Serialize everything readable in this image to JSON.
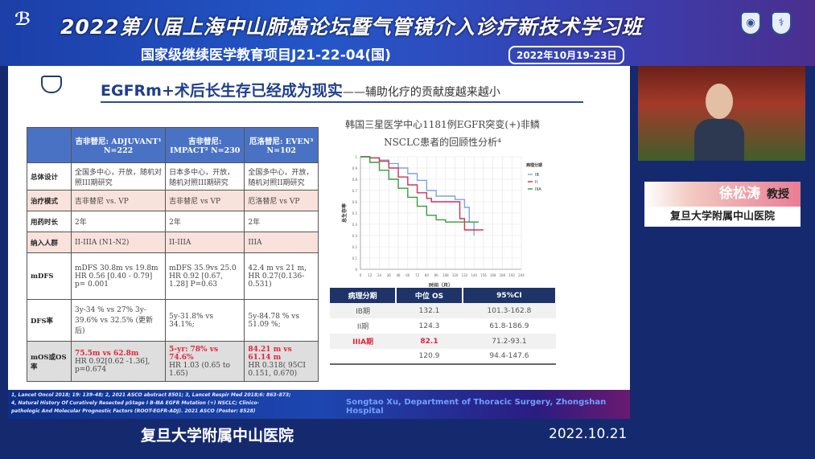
{
  "banner": {
    "title": "2022第八届上海中山肺癌论坛暨气管镜介入诊疗新技术学习班",
    "subtitle": "国家级继续医学教育项目J21-22-04(国)",
    "date": "2022年10月19-23日"
  },
  "slide": {
    "logo_text": "中山医院",
    "title": "EGFRm+术后长生存已经成为现实",
    "title_suffix": "——辅助化疗的贡献度越来越小",
    "table": {
      "headers": [
        "",
        "吉非替尼: ADJUVANT¹ N=222",
        "吉非替尼: IMPACT² N=230",
        "厄洛替尼: EVEN³ N=102"
      ],
      "rows": [
        {
          "label": "总体设计",
          "cells": [
            "全国多中心，开放，随机对照III期研究",
            "日本多中心，开放，随机对照III期研究",
            "全国多中心，开放，随机对照II期研究"
          ]
        },
        {
          "label": "治疗模式",
          "cells": [
            "吉非替尼 vs. VP",
            "吉非替尼 vs VP",
            "厄洛替尼 vs VP"
          ]
        },
        {
          "label": "用药时长",
          "cells": [
            "2年",
            "2年",
            "2年"
          ]
        },
        {
          "label": "纳入人群",
          "cells": [
            "II-IIIA (N1-N2)",
            "II-IIIA",
            "IIIA"
          ]
        },
        {
          "label": "mDFS",
          "cells": [
            "mDFS 30.8m vs 19.8m HR 0.56 [0.40 - 0.79] p= 0.001",
            "mDFS 35.9vs 25.0 HR 0.92 [0.67, 1.28] P=0.63",
            "42.4 m vs 21 m, HR 0.27(0.136-0.531)"
          ]
        },
        {
          "label": "DFS率",
          "cells": [
            "3y-34 % vs 27% 3y-39.6% vs 32.5% (更新后)",
            "5y-31.8% vs 34.1%;",
            "5y-84.78 % vs 51.09 %;"
          ]
        },
        {
          "label": "mOS或OS率",
          "highlight": [
            "75.5m vs 62.8m",
            "5-yr: 78% vs 74.6%",
            "84.21 m vs 61.14 m"
          ],
          "cells": [
            "HR 0.92[0.62 -1.36], p=0.674",
            "HR 1.03 (0.65 to 1.65)",
            "HR 0.318( 95CI 0.151, 0.670)"
          ]
        }
      ]
    },
    "chart_title": "韩国三星医学中心1181例EGFR突变(+)非鳞NSCLC患者的回顾性分析⁴",
    "os_table": {
      "headers": [
        "病理分期",
        "中位 OS",
        "95%CI"
      ],
      "rows": [
        [
          "IB期",
          "132.1",
          "101.3-162.8"
        ],
        [
          "II期",
          "124.3",
          "61.8-186.9"
        ],
        [
          "IIIA期",
          "82.1",
          "71.2-93.1"
        ],
        [
          "",
          "120.9",
          "94.4-147.6"
        ]
      ]
    },
    "references": [
      "1, Lancet Oncol 2018; 19: 139–48; 2, 2021 ASCO abstract 8501; 3, Lancet Respir Med 2018;6: 863–873;",
      "4, Natural History Of Curatively Resected pStage Ⅰ B-ⅢA EGFR Mutation (+) NSCLC; Clinico-",
      "pathologic And Molecular Prognostic Factors (ROOT-EGFR-ADJ). 2021 ASCO (Poster: 8528)"
    ],
    "author": "Songtao Xu, Department of Thoracic Surgery, Zhongshan Hospital"
  },
  "chart_data": {
    "type": "line",
    "title": "韩国三星医学中心1181例EGFR突变(+)非鳞NSCLC患者的回顾性分析",
    "xlabel": "时间（月）",
    "ylabel": "总生存率",
    "xlim": [
      0,
      204
    ],
    "ylim": [
      0,
      1.0
    ],
    "xticks": [
      0,
      12,
      24,
      36,
      48,
      60,
      72,
      84,
      96,
      108,
      120,
      132,
      144,
      156,
      168,
      180,
      192,
      204
    ],
    "yticks": [
      0,
      0.1,
      0.2,
      0.3,
      0.4,
      0.5,
      0.6,
      0.7,
      0.8,
      0.9,
      1.0
    ],
    "legend_title": "病理分期",
    "legend_position": "top-right",
    "series": [
      {
        "name": "IB",
        "color": "#7aa6e0",
        "x": [
          0,
          12,
          24,
          36,
          48,
          60,
          72,
          84,
          96,
          108,
          120,
          132,
          138,
          144
        ],
        "y": [
          1,
          0.99,
          0.97,
          0.94,
          0.9,
          0.85,
          0.79,
          0.7,
          0.65,
          0.65,
          0.62,
          0.55,
          0.42,
          0.3
        ]
      },
      {
        "name": "II",
        "color": "#d0305a",
        "x": [
          0,
          12,
          24,
          36,
          48,
          60,
          72,
          84,
          90,
          120,
          126,
          132,
          156
        ],
        "y": [
          1,
          0.99,
          0.96,
          0.9,
          0.82,
          0.75,
          0.68,
          0.63,
          0.6,
          0.6,
          0.45,
          0.35,
          0.35
        ]
      },
      {
        "name": "IIIA",
        "color": "#3a9a3a",
        "x": [
          0,
          12,
          24,
          36,
          48,
          60,
          72,
          84,
          96,
          108,
          144,
          150
        ],
        "y": [
          1,
          0.95,
          0.88,
          0.8,
          0.72,
          0.64,
          0.56,
          0.48,
          0.44,
          0.42,
          0.42,
          0.42
        ]
      }
    ]
  },
  "caption": {
    "hospital": "复旦大学附属中山医院",
    "date": "2022.10.21"
  },
  "speaker": {
    "name": "徐松涛",
    "title": "教授",
    "affiliation": "复旦大学附属中山医院"
  }
}
